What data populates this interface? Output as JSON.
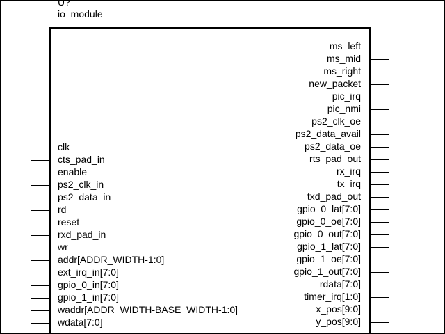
{
  "symbol": {
    "reference": "U?",
    "module_name": "io_module"
  },
  "inputs": [
    "clk",
    "cts_pad_in",
    "enable",
    "ps2_clk_in",
    "ps2_data_in",
    "rd",
    "reset",
    "rxd_pad_in",
    "wr",
    "addr[ADDR_WIDTH-1:0]",
    "ext_irq_in[7:0]",
    "gpio_0_in[7:0]",
    "gpio_1_in[7:0]",
    "waddr[ADDR_WIDTH-BASE_WIDTH-1:0]",
    "wdata[7:0]"
  ],
  "outputs": [
    "ms_left",
    "ms_mid",
    "ms_right",
    "new_packet",
    "pic_irq",
    "pic_nmi",
    "ps2_clk_oe",
    "ps2_data_avail",
    "ps2_data_oe",
    "rts_pad_out",
    "rx_irq",
    "tx_irq",
    "txd_pad_out",
    "gpio_0_lat[7:0]",
    "gpio_0_oe[7:0]",
    "gpio_0_out[7:0]",
    "gpio_1_lat[7:0]",
    "gpio_1_oe[7:0]",
    "gpio_1_out[7:0]",
    "rdata[7:0]",
    "timer_irq[1:0]",
    "x_pos[9:0]",
    "y_pos[9:0]"
  ]
}
